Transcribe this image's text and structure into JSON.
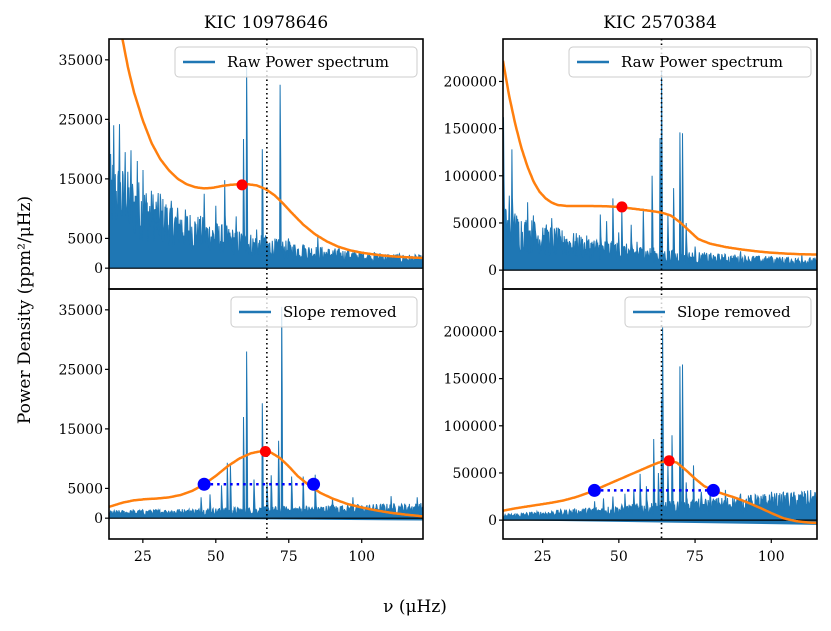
{
  "chart_data": {
    "type": "line",
    "ylabel": "Power Density (ppm²/μHz)",
    "xlabel": "ν (μHz)",
    "colors": {
      "spectrum": "#1f77b4",
      "fit": "#ff7f0e",
      "numax_marker": "#ff0000",
      "fwhm_marker": "#0000ff",
      "vline": "#000000"
    },
    "columns": [
      {
        "title": "KIC 10978646",
        "xlim": [
          13.4,
          121
        ],
        "xticks": [
          25,
          50,
          75,
          100
        ],
        "vline_x": 67.5,
        "panels": [
          {
            "legend": "Raw Power spectrum",
            "ylim": [
              -3500,
              38500
            ],
            "yticks": [
              0,
              5000,
              15000,
              25000,
              35000
            ],
            "yticklabels": [
              "0",
              "5000",
              "15000",
              "25000",
              "35000"
            ],
            "numax_point": {
              "x": 59,
              "y": 14000
            },
            "fit_curve": {
              "x": [
                13.4,
                16,
                18,
                20,
                22,
                25,
                28,
                31,
                34,
                37,
                40,
                43,
                46,
                49,
                52,
                55,
                58,
                61,
                64,
                67,
                70,
                73,
                76,
                80,
                84,
                88,
                92,
                96,
                100,
                105,
                110,
                115,
                121
              ],
              "y": [
                52000,
                44000,
                38500,
                33500,
                29500,
                24800,
                21000,
                18300,
                16400,
                15000,
                14100,
                13600,
                13400,
                13500,
                13800,
                14000,
                14100,
                14100,
                13900,
                13300,
                12300,
                10900,
                9300,
                7300,
                5700,
                4500,
                3600,
                3000,
                2600,
                2250,
                2000,
                1850,
                1700
              ]
            },
            "peaks": [
              [
                13.5,
                24500
              ],
              [
                15,
                24000
              ],
              [
                17,
                24200
              ],
              [
                19,
                19500
              ],
              [
                21,
                19800
              ],
              [
                23,
                18000
              ],
              [
                25,
                16500
              ],
              [
                28,
                13000
              ],
              [
                31,
                12500
              ],
              [
                35,
                9500
              ],
              [
                40,
                8000
              ],
              [
                46,
                12500
              ],
              [
                50,
                10500
              ],
              [
                53,
                14800
              ],
              [
                57,
                8700
              ],
              [
                59.5,
                21700
              ],
              [
                60.5,
                34000
              ],
              [
                64,
                6500
              ],
              [
                66,
                20000
              ],
              [
                67,
                5500
              ],
              [
                72,
                30800
              ],
              [
                75,
                5000
              ],
              [
                80,
                4000
              ],
              [
                85,
                5300
              ]
            ],
            "noise_level": [
              14000,
              1000
            ]
          },
          {
            "legend": "Slope removed",
            "ylim": [
              -3500,
              38500
            ],
            "yticks": [
              0,
              5000,
              15000,
              25000,
              35000
            ],
            "yticklabels": [
              "0",
              "5000",
              "15000",
              "25000",
              "35000"
            ],
            "numax_point": {
              "x": 67,
              "y": 11200
            },
            "fwhm_points": [
              {
                "x": 46,
                "y": 5700
              },
              {
                "x": 83.5,
                "y": 5700
              }
            ],
            "fit_curve": {
              "x": [
                13.4,
                18,
                22,
                26,
                30,
                34,
                38,
                42,
                46,
                50,
                54,
                58,
                62,
                65,
                67,
                69,
                72,
                75,
                78,
                82,
                86,
                90,
                95,
                100,
                105,
                110,
                115,
                121
              ],
              "y": [
                1900,
                2600,
                3000,
                3200,
                3300,
                3500,
                3900,
                4600,
                5700,
                7100,
                8700,
                10000,
                10900,
                11200,
                11200,
                11000,
                10100,
                8700,
                7100,
                5500,
                4200,
                3300,
                2400,
                1800,
                1300,
                900,
                600,
                300
              ]
            },
            "peaks": [
              [
                45,
                3500
              ],
              [
                48,
                4000
              ],
              [
                52,
                5500
              ],
              [
                54,
                9300
              ],
              [
                55,
                9000
              ],
              [
                59.5,
                17000
              ],
              [
                60.5,
                28000
              ],
              [
                63,
                6500
              ],
              [
                66,
                19300
              ],
              [
                67.5,
                6000
              ],
              [
                69,
                7200
              ],
              [
                71.5,
                13000
              ],
              [
                72.5,
                35500
              ],
              [
                76,
                7000
              ],
              [
                80,
                7000
              ],
              [
                84,
                7300
              ],
              [
                90,
                3300
              ],
              [
                97,
                3500
              ],
              [
                110,
                3700
              ],
              [
                119,
                3500
              ]
            ],
            "noise_level": [
              1000,
              2000
            ]
          }
        ]
      },
      {
        "title": "KIC 2570384",
        "xlim": [
          12,
          115
        ],
        "xticks": [
          25,
          50,
          75,
          100
        ],
        "vline_x": 64,
        "panels": [
          {
            "legend": "Raw Power spectrum",
            "ylim": [
              -20000,
              245000
            ],
            "yticks": [
              0,
              50000,
              100000,
              150000,
              200000
            ],
            "yticklabels": [
              "0",
              "50000",
              "100000",
              "150000",
              "200000"
            ],
            "numax_point": {
              "x": 51,
              "y": 67000
            },
            "fit_curve": {
              "x": [
                12,
                14,
                16,
                18,
                20,
                22,
                24,
                26,
                28,
                30,
                33,
                36,
                40,
                45,
                50,
                55,
                60,
                64,
                67,
                70,
                73,
                76,
                80,
                85,
                90,
                95,
                100,
                105,
                110,
                115
              ],
              "y": [
                222000,
                185000,
                155000,
                130000,
                110000,
                94000,
                83000,
                76000,
                71500,
                69000,
                68000,
                68000,
                68000,
                67800,
                67000,
                65000,
                63000,
                61000,
                58000,
                51000,
                42000,
                33000,
                28000,
                24500,
                22000,
                20000,
                18500,
                17500,
                16800,
                16500
              ]
            },
            "peaks": [
              [
                12.2,
                162000
              ],
              [
                13,
                63000
              ],
              [
                14,
                79000
              ],
              [
                15,
                128000
              ],
              [
                16,
                60000
              ],
              [
                18,
                52000
              ],
              [
                20,
                72000
              ],
              [
                22,
                58000
              ],
              [
                25,
                45000
              ],
              [
                28,
                55000
              ],
              [
                32,
                36000
              ],
              [
                36,
                37000
              ],
              [
                40,
                30000
              ],
              [
                44,
                59000
              ],
              [
                46,
                52000
              ],
              [
                48,
                76000
              ],
              [
                50,
                40000
              ],
              [
                51,
                65000
              ],
              [
                54,
                48000
              ],
              [
                56,
                30000
              ],
              [
                58,
                65000
              ],
              [
                61,
                100000
              ],
              [
                63.5,
                140000
              ],
              [
                64,
                210000
              ],
              [
                66,
                60000
              ],
              [
                68,
                87000
              ],
              [
                70,
                146000
              ],
              [
                70.8,
                145000
              ],
              [
                72,
                50000
              ],
              [
                75,
                25000
              ],
              [
                80,
                15000
              ],
              [
                90,
                20000
              ],
              [
                100,
                15000
              ],
              [
                110,
                17000
              ]
            ],
            "noise_level": [
              45000,
              8000
            ]
          },
          {
            "legend": "Slope removed",
            "ylim": [
              -20000,
              245000
            ],
            "yticks": [
              0,
              50000,
              100000,
              150000,
              200000
            ],
            "yticklabels": [
              "0",
              "50000",
              "100000",
              "150000",
              "200000"
            ],
            "numax_point": {
              "x": 66.5,
              "y": 63000
            },
            "fwhm_points": [
              {
                "x": 42,
                "y": 31500
              },
              {
                "x": 81,
                "y": 31500
              }
            ],
            "fit_curve": {
              "x": [
                12,
                16,
                20,
                24,
                28,
                32,
                36,
                40,
                42,
                45,
                50,
                55,
                60,
                63,
                66.5,
                69,
                72,
                75,
                78,
                81,
                84,
                88,
                92,
                96,
                100,
                104,
                108,
                112,
                115
              ],
              "y": [
                10000,
                12500,
                14500,
                16500,
                18500,
                21000,
                24500,
                29000,
                31500,
                36000,
                43000,
                50000,
                57000,
                61000,
                63000,
                61000,
                53000,
                44000,
                36000,
                31500,
                28000,
                24000,
                19000,
                13500,
                7500,
                2000,
                -1000,
                -2500,
                -3000
              ]
            },
            "peaks": [
              [
                42,
                20000
              ],
              [
                45,
                23000
              ],
              [
                48,
                25000
              ],
              [
                52,
                28000
              ],
              [
                55,
                32000
              ],
              [
                57,
                49000
              ],
              [
                59,
                36000
              ],
              [
                61.5,
                86000
              ],
              [
                63,
                50000
              ],
              [
                64,
                128000
              ],
              [
                64.3,
                205000
              ],
              [
                66,
                60000
              ],
              [
                67.5,
                90000
              ],
              [
                70,
                163000
              ],
              [
                70.8,
                165000
              ],
              [
                72,
                40000
              ],
              [
                74.5,
                58000
              ],
              [
                77,
                30000
              ],
              [
                80,
                33000
              ],
              [
                85,
                32000
              ],
              [
                90,
                28000
              ],
              [
                95,
                26000
              ],
              [
                100,
                30000
              ],
              [
                105,
                29000
              ],
              [
                110,
                30000
              ]
            ],
            "noise_level": [
              5000,
              25000
            ]
          }
        ]
      }
    ]
  }
}
